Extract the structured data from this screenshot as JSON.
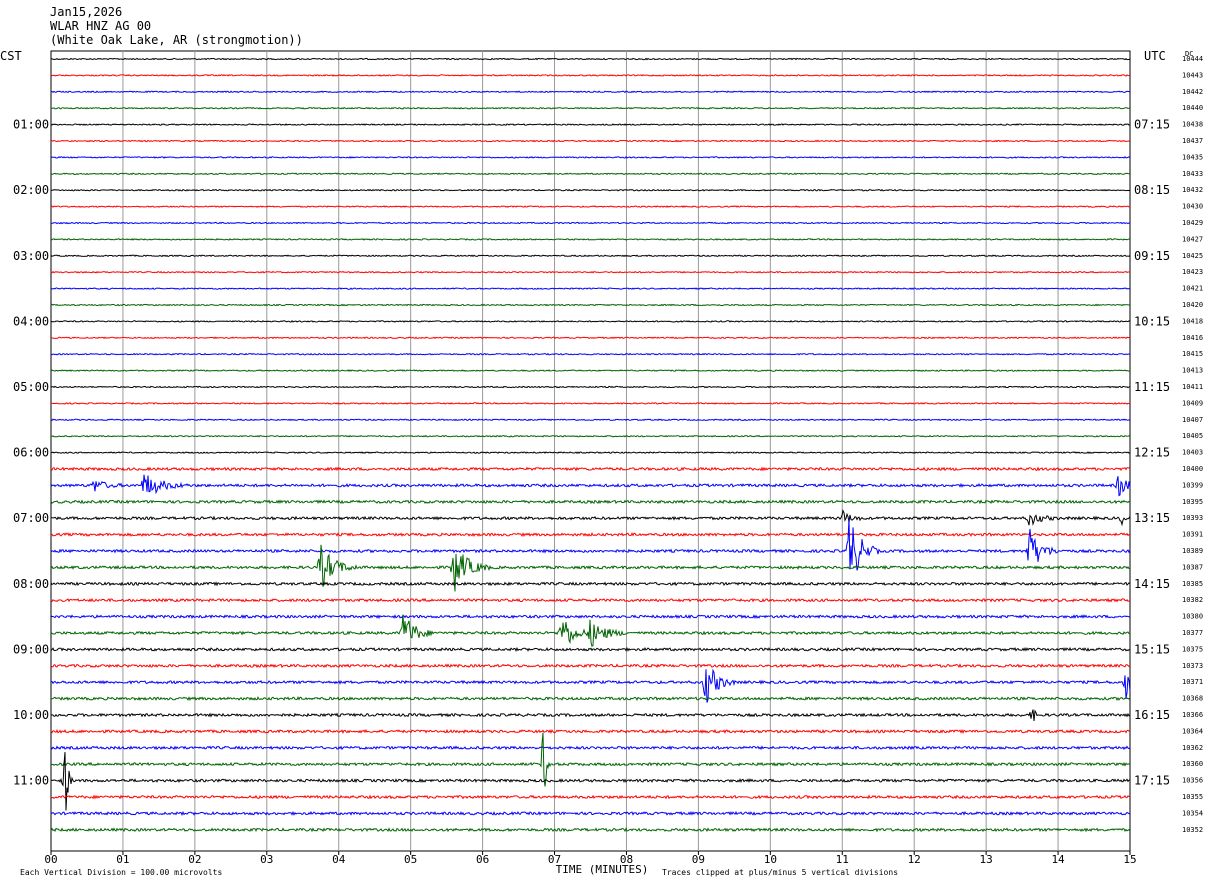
{
  "header": {
    "date": "Jan15,2026",
    "station": "WLAR HNZ AG 00",
    "location": "(White Oak Lake, AR (strongmotion))"
  },
  "chart_data": {
    "type": "line",
    "left_timezone": "CST",
    "right_timezone": "UTC",
    "dc_label": "DC",
    "xlabel": "TIME (MINUTES)",
    "x_ticks": [
      "00",
      "01",
      "02",
      "03",
      "04",
      "05",
      "06",
      "07",
      "08",
      "09",
      "10",
      "11",
      "12",
      "13",
      "14",
      "15"
    ],
    "xlim": [
      0,
      15
    ],
    "grid": true,
    "trace_colors": [
      "#000000",
      "#ff0000",
      "#0000ff",
      "#006400"
    ],
    "left_hour_labels": [
      {
        "trace": 4,
        "label": "01:00"
      },
      {
        "trace": 8,
        "label": "02:00"
      },
      {
        "trace": 12,
        "label": "03:00"
      },
      {
        "trace": 16,
        "label": "04:00"
      },
      {
        "trace": 20,
        "label": "05:00"
      },
      {
        "trace": 24,
        "label": "06:00"
      },
      {
        "trace": 28,
        "label": "07:00"
      },
      {
        "trace": 32,
        "label": "08:00"
      },
      {
        "trace": 36,
        "label": "09:00"
      },
      {
        "trace": 40,
        "label": "10:00"
      },
      {
        "trace": 44,
        "label": "11:00"
      }
    ],
    "right_hour_labels": [
      {
        "trace": 4,
        "label": "07:15"
      },
      {
        "trace": 8,
        "label": "08:15"
      },
      {
        "trace": 12,
        "label": "09:15"
      },
      {
        "trace": 16,
        "label": "10:15"
      },
      {
        "trace": 20,
        "label": "11:15"
      },
      {
        "trace": 24,
        "label": "12:15"
      },
      {
        "trace": 28,
        "label": "13:15"
      },
      {
        "trace": 32,
        "label": "14:15"
      },
      {
        "trace": 36,
        "label": "15:15"
      },
      {
        "trace": 40,
        "label": "16:15"
      },
      {
        "trace": 44,
        "label": "17:15"
      }
    ],
    "dc_values": [
      "10444",
      "10443",
      "10442",
      "10440",
      "10438",
      "10437",
      "10435",
      "10433",
      "10432",
      "10430",
      "10429",
      "10427",
      "10425",
      "10423",
      "10421",
      "10420",
      "10418",
      "10416",
      "10415",
      "10413",
      "10411",
      "10409",
      "10407",
      "10405",
      "10403",
      "10400",
      "10399",
      "10395",
      "10393",
      "10391",
      "10389",
      "10387",
      "10385",
      "10382",
      "10380",
      "10377",
      "10375",
      "10373",
      "10371",
      "10368",
      "10366",
      "10364",
      "10362",
      "10360",
      "10356",
      "10355",
      "10354",
      "10352"
    ],
    "events": [
      {
        "trace": 26,
        "minute": 1.3,
        "amplitude": 1.6,
        "duration": 0.6
      },
      {
        "trace": 26,
        "minute": 0.6,
        "amplitude": 0.8,
        "duration": 0.4
      },
      {
        "trace": 26,
        "minute": 14.85,
        "amplitude": 1.6,
        "duration": 0.3
      },
      {
        "trace": 28,
        "minute": 13.6,
        "amplitude": 0.9,
        "duration": 0.4
      },
      {
        "trace": 28,
        "minute": 11.0,
        "amplitude": 1.0,
        "duration": 0.3
      },
      {
        "trace": 28,
        "minute": 14.9,
        "amplitude": 0.8,
        "duration": 0.2
      },
      {
        "trace": 30,
        "minute": 11.1,
        "amplitude": 5.0,
        "duration": 0.4
      },
      {
        "trace": 30,
        "minute": 13.6,
        "amplitude": 3.0,
        "duration": 0.4
      },
      {
        "trace": 31,
        "minute": 3.75,
        "amplitude": 2.8,
        "duration": 0.5
      },
      {
        "trace": 31,
        "minute": 5.6,
        "amplitude": 3.2,
        "duration": 0.5
      },
      {
        "trace": 35,
        "minute": 4.9,
        "amplitude": 2.8,
        "duration": 0.4
      },
      {
        "trace": 35,
        "minute": 7.1,
        "amplitude": 2.6,
        "duration": 0.4
      },
      {
        "trace": 35,
        "minute": 7.5,
        "amplitude": 1.8,
        "duration": 0.5
      },
      {
        "trace": 38,
        "minute": 9.1,
        "amplitude": 3.0,
        "duration": 0.4
      },
      {
        "trace": 38,
        "minute": 14.95,
        "amplitude": 2.4,
        "duration": 0.2
      },
      {
        "trace": 40,
        "minute": 13.65,
        "amplitude": 1.0,
        "duration": 0.1
      },
      {
        "trace": 43,
        "minute": 6.85,
        "amplitude": 5.0,
        "duration": 0.1
      },
      {
        "trace": 44,
        "minute": 0.2,
        "amplitude": 5.0,
        "duration": 0.1
      }
    ],
    "footer_left": "Each Vertical Division =  100.00 microvolts",
    "footer_right": "Traces clipped at plus/minus 5 vertical divisions"
  }
}
